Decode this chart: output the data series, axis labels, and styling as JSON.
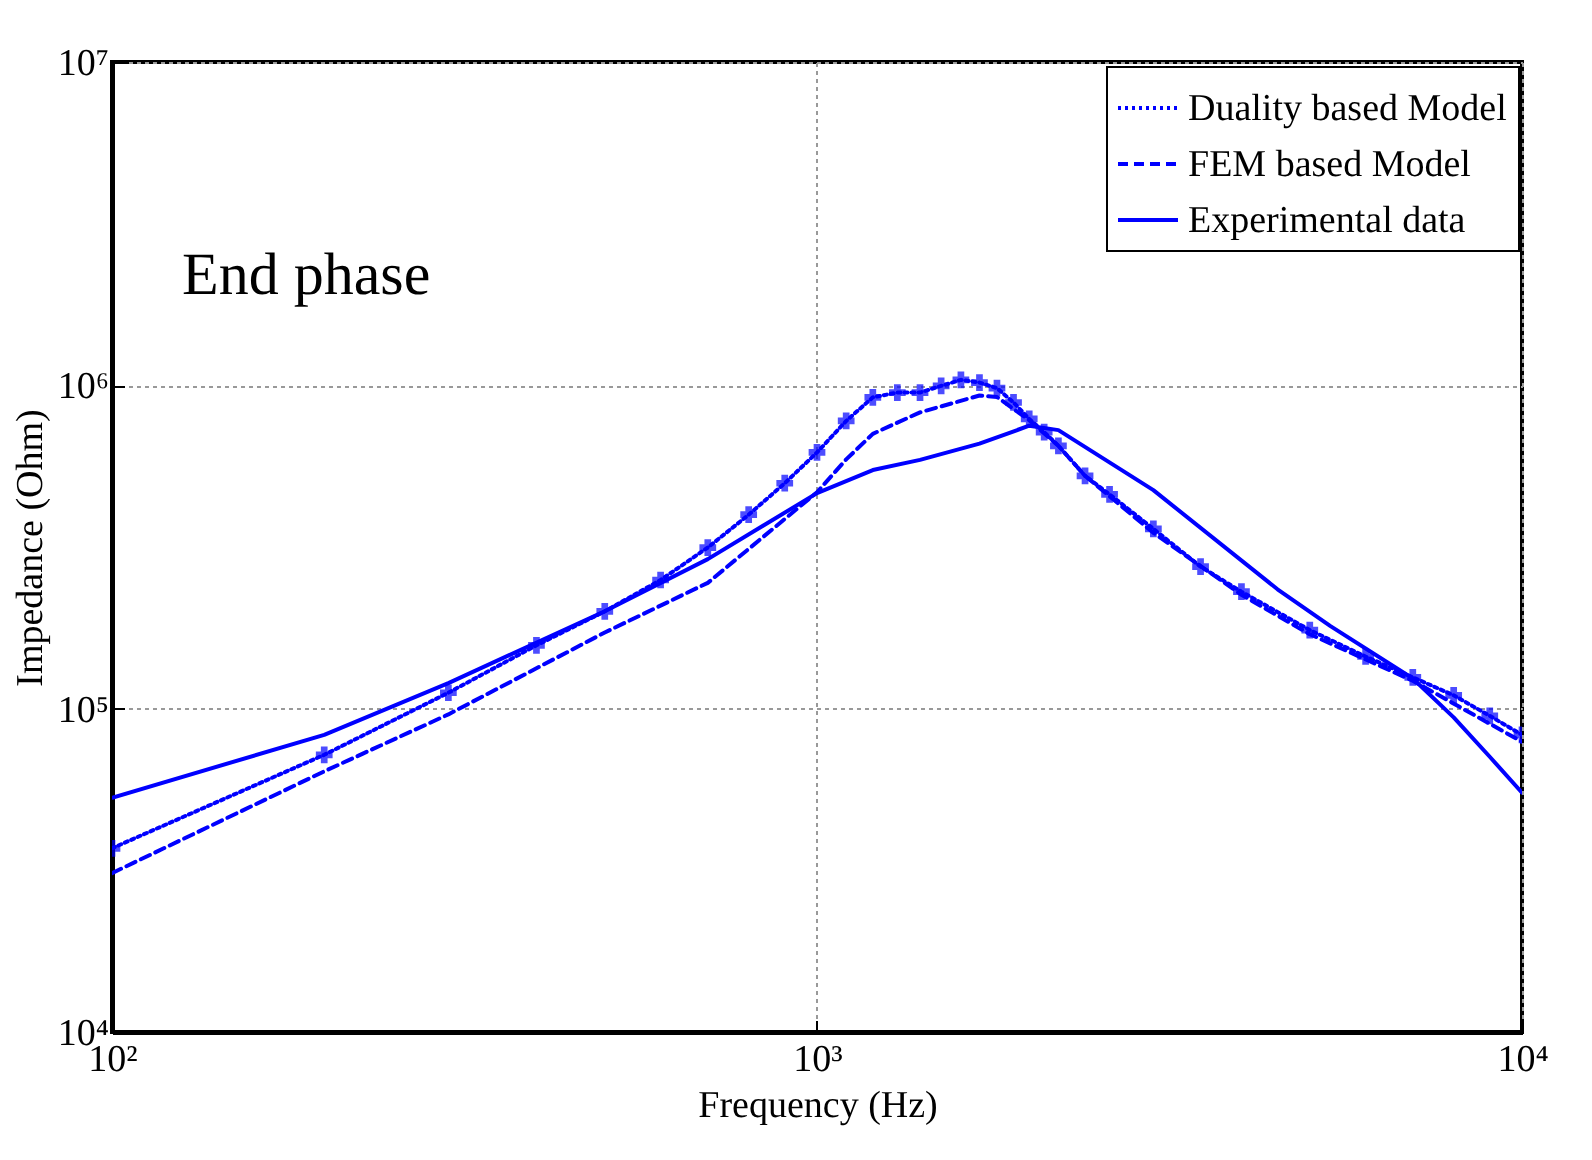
{
  "chart_data": {
    "type": "line",
    "xlabel": "Frequency (Hz)",
    "ylabel": "Impedance (Ohm)",
    "annotations": [
      "End phase"
    ],
    "log": "xy",
    "grid": true,
    "legend": "top right",
    "xlim": [
      100,
      10000
    ],
    "xticks": [
      {
        "value": 100,
        "label": "10²"
      },
      {
        "value": 1000,
        "label": "10³"
      },
      {
        "value": 10000,
        "label": "10⁴"
      }
    ],
    "ylim": [
      10000,
      10000000
    ],
    "yticks": [
      {
        "value": 10000,
        "label": "10⁴"
      },
      {
        "value": 100000,
        "label": "10⁵"
      },
      {
        "value": 1000000,
        "label": "10⁶"
      },
      {
        "value": 10000000,
        "label": "10⁷"
      }
    ],
    "series": [
      {
        "name": "Duality based Model",
        "color": "#0000ff",
        "marker": "cross",
        "line_style": "dotted",
        "x": [
          100,
          200,
          300,
          400,
          500,
          600,
          700,
          800,
          900,
          1000,
          1100,
          1200,
          1300,
          1400,
          1500,
          1600,
          1700,
          1800,
          1900,
          2000,
          2100,
          2200,
          2400,
          2600,
          3000,
          3500,
          4000,
          5000,
          6000,
          7000,
          8000,
          9000,
          10000
        ],
        "values": [
          37000,
          72000,
          112000,
          157000,
          200000,
          250000,
          315000,
          398000,
          498000,
          620000,
          776000,
          918000,
          950000,
          950000,
          996000,
          1040000,
          1020000,
          980000,
          885000,
          787000,
          717000,
          650000,
          525000,
          460000,
          360000,
          275000,
          230000,
          175000,
          145000,
          125000,
          110000,
          95000,
          83000
        ]
      },
      {
        "name": "FEM based Model",
        "color": "#0000ff",
        "marker": "none",
        "line_style": "dashed",
        "x": [
          100,
          200,
          300,
          500,
          700,
          1000,
          1100,
          1200,
          1400,
          1700,
          1800,
          2000,
          2200,
          2400,
          3000,
          4000,
          5000,
          7000,
          10000
        ],
        "values": [
          31000,
          64000,
          96000,
          172000,
          245000,
          467000,
          590000,
          708000,
          825000,
          930000,
          920000,
          780000,
          650000,
          525000,
          350000,
          225000,
          170000,
          122000,
          79000
        ]
      },
      {
        "name": "Experimental data",
        "color": "#0000ff",
        "marker": "none",
        "line_style": "solid",
        "x": [
          100,
          200,
          300,
          500,
          700,
          1000,
          1200,
          1400,
          1700,
          2000,
          2200,
          3000,
          4500,
          5350,
          7000,
          8000,
          9000,
          10000
        ],
        "values": [
          53000,
          83000,
          120000,
          200000,
          290000,
          464000,
          547000,
          588000,
          660000,
          750000,
          727000,
          474000,
          234000,
          180000,
          124000,
          94000,
          71000,
          55000
        ]
      }
    ]
  }
}
